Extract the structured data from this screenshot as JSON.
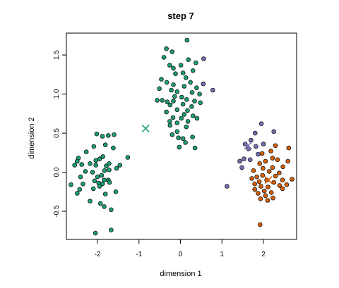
{
  "chart_data": {
    "type": "scatter",
    "title": "step 7",
    "xlabel": "dimension 1",
    "ylabel": "dimension 2",
    "xlim": [
      -2.75,
      2.8
    ],
    "ylim": [
      -0.86,
      1.78
    ],
    "xticks": [
      -2,
      -1,
      0,
      1,
      2
    ],
    "xtick_labels": [
      "-2",
      "-1",
      "0",
      "1",
      "2"
    ],
    "yticks": [
      -0.5,
      0.0,
      0.5,
      1.0,
      1.5
    ],
    "ytick_labels": [
      "-0.5",
      "0.0",
      "0.5",
      "1.0",
      "1.5"
    ],
    "grid": false,
    "legend": "none",
    "colors": {
      "green": "#1b9e77",
      "orange": "#d95f02",
      "purple": "#7570b3"
    },
    "series": [
      {
        "color": "green",
        "marker": "circle",
        "points": [
          [
            -2.02,
            0.49
          ],
          [
            -1.88,
            0.46
          ],
          [
            -1.74,
            0.47
          ],
          [
            -1.62,
            0.31
          ],
          [
            -1.81,
            0.35
          ],
          [
            -1.6,
            0.48
          ],
          [
            -1.27,
            0.19
          ],
          [
            -2.09,
            0.33
          ],
          [
            -2.27,
            0.26
          ],
          [
            -1.87,
            0.2
          ],
          [
            -1.95,
            0.17
          ],
          [
            -2.04,
            0.15
          ],
          [
            -2.46,
            0.18
          ],
          [
            -2.49,
            0.14
          ],
          [
            -2.55,
            0.09
          ],
          [
            -2.38,
            0.1
          ],
          [
            -2.18,
            0.11
          ],
          [
            -2.04,
            0.09
          ],
          [
            -1.79,
            0.08
          ],
          [
            -1.72,
            0.11
          ],
          [
            -1.46,
            0.09
          ],
          [
            -1.54,
            0.05
          ],
          [
            -2.29,
            0.01
          ],
          [
            -2.12,
            0.0
          ],
          [
            -1.83,
            0.02
          ],
          [
            -1.72,
            0.03
          ],
          [
            -1.9,
            -0.04
          ],
          [
            -2.41,
            -0.06
          ],
          [
            -2.0,
            -0.06
          ],
          [
            -2.07,
            -0.11
          ],
          [
            -1.84,
            -0.1
          ],
          [
            -1.74,
            -0.1
          ],
          [
            -1.71,
            -0.13
          ],
          [
            -2.64,
            -0.16
          ],
          [
            -2.35,
            -0.15
          ],
          [
            -1.97,
            -0.14
          ],
          [
            -1.88,
            -0.15
          ],
          [
            -1.95,
            -0.18
          ],
          [
            -2.43,
            -0.22
          ],
          [
            -2.1,
            -0.21
          ],
          [
            -1.56,
            -0.25
          ],
          [
            -2.49,
            -0.27
          ],
          [
            -1.81,
            -0.28
          ],
          [
            -2.18,
            -0.37
          ],
          [
            -1.93,
            -0.4
          ],
          [
            -1.84,
            -0.44
          ],
          [
            -1.67,
            -0.48
          ],
          [
            -1.67,
            -0.74
          ],
          [
            -2.05,
            -0.78
          ],
          [
            0.16,
            1.69
          ],
          [
            -0.34,
            1.58
          ],
          [
            -0.2,
            1.54
          ],
          [
            -0.4,
            1.47
          ],
          [
            0.19,
            1.44
          ],
          [
            0.37,
            1.4
          ],
          [
            -0.26,
            1.37
          ],
          [
            0.01,
            1.37
          ],
          [
            0.3,
            1.3
          ],
          [
            -0.17,
            1.33
          ],
          [
            -0.12,
            1.26
          ],
          [
            0.06,
            1.27
          ],
          [
            -0.46,
            1.19
          ],
          [
            -0.33,
            1.15
          ],
          [
            0.24,
            1.15
          ],
          [
            0.13,
            1.21
          ],
          [
            -0.17,
            1.12
          ],
          [
            0.09,
            1.1
          ],
          [
            0.39,
            1.08
          ],
          [
            -0.51,
            1.07
          ],
          [
            -0.22,
            1.05
          ],
          [
            -0.08,
            1.03
          ],
          [
            0.28,
            1.02
          ],
          [
            0.46,
            1.0
          ],
          [
            -0.14,
            0.97
          ],
          [
            0.03,
            0.96
          ],
          [
            -0.44,
            0.92
          ],
          [
            -0.32,
            0.9
          ],
          [
            -0.17,
            0.91
          ],
          [
            0.15,
            0.93
          ],
          [
            0.34,
            0.91
          ],
          [
            -0.56,
            0.92
          ],
          [
            -0.25,
            0.86
          ],
          [
            0.06,
            0.87
          ],
          [
            0.27,
            0.84
          ],
          [
            0.48,
            0.89
          ],
          [
            -0.08,
            0.8
          ],
          [
            0.17,
            0.79
          ],
          [
            -0.34,
            0.77
          ],
          [
            0.09,
            0.74
          ],
          [
            0.3,
            0.72
          ],
          [
            -0.18,
            0.7
          ],
          [
            0.02,
            0.69
          ],
          [
            0.4,
            0.69
          ],
          [
            -0.26,
            0.65
          ],
          [
            -0.08,
            0.63
          ],
          [
            0.18,
            0.65
          ],
          [
            -0.25,
            0.6
          ],
          [
            0.14,
            0.58
          ],
          [
            -0.08,
            0.52
          ],
          [
            -0.2,
            0.48
          ],
          [
            0.29,
            0.45
          ],
          [
            -0.05,
            0.44
          ],
          [
            0.06,
            0.43
          ],
          [
            0.12,
            0.38
          ],
          [
            -0.03,
            0.32
          ],
          [
            0.35,
            0.31
          ]
        ]
      },
      {
        "color": "purple",
        "marker": "circle",
        "points": [
          [
            0.56,
            1.45
          ],
          [
            0.55,
            1.13
          ],
          [
            0.78,
            1.05
          ],
          [
            1.95,
            0.62
          ],
          [
            1.8,
            0.5
          ],
          [
            2.25,
            0.52
          ],
          [
            1.7,
            0.41
          ],
          [
            1.56,
            0.36
          ],
          [
            2.0,
            0.36
          ],
          [
            1.64,
            0.3
          ],
          [
            1.82,
            0.33
          ],
          [
            1.53,
            0.17
          ],
          [
            1.68,
            0.16
          ],
          [
            1.43,
            0.14
          ],
          [
            1.87,
            0.23
          ],
          [
            1.48,
            0.06
          ],
          [
            1.12,
            -0.18
          ]
        ]
      },
      {
        "color": "orange",
        "marker": "circle",
        "points": [
          [
            2.29,
            0.34
          ],
          [
            2.61,
            0.31
          ],
          [
            2.18,
            0.27
          ],
          [
            1.97,
            0.24
          ],
          [
            2.22,
            0.18
          ],
          [
            1.91,
            0.11
          ],
          [
            2.05,
            0.14
          ],
          [
            2.34,
            0.16
          ],
          [
            2.59,
            0.14
          ],
          [
            1.99,
            0.05
          ],
          [
            2.22,
            0.06
          ],
          [
            2.47,
            0.07
          ],
          [
            2.14,
            0.01
          ],
          [
            1.76,
            0.02
          ],
          [
            2.38,
            -0.01
          ],
          [
            1.98,
            -0.04
          ],
          [
            2.29,
            -0.05
          ],
          [
            1.72,
            -0.08
          ],
          [
            1.84,
            -0.06
          ],
          [
            2.69,
            -0.09
          ],
          [
            2.08,
            -0.1
          ],
          [
            2.46,
            -0.1
          ],
          [
            1.9,
            -0.12
          ],
          [
            2.25,
            -0.13
          ],
          [
            1.79,
            -0.15
          ],
          [
            2.56,
            -0.16
          ],
          [
            2.39,
            -0.17
          ],
          [
            1.94,
            -0.18
          ],
          [
            2.11,
            -0.19
          ],
          [
            2.46,
            -0.21
          ],
          [
            1.79,
            -0.22
          ],
          [
            2.02,
            -0.24
          ],
          [
            2.19,
            -0.26
          ],
          [
            1.87,
            -0.27
          ],
          [
            2.05,
            -0.3
          ],
          [
            2.23,
            -0.33
          ],
          [
            1.93,
            -0.34
          ],
          [
            2.1,
            -0.36
          ],
          [
            1.92,
            -0.67
          ]
        ]
      }
    ],
    "centroids": [
      {
        "color": "green",
        "marker": "x",
        "x": -0.84,
        "y": 0.56
      },
      {
        "color": "purple",
        "marker": "x",
        "x": 1.63,
        "y": 0.34
      },
      {
        "color": "orange",
        "marker": "x",
        "x": 2.12,
        "y": -0.1
      }
    ]
  }
}
